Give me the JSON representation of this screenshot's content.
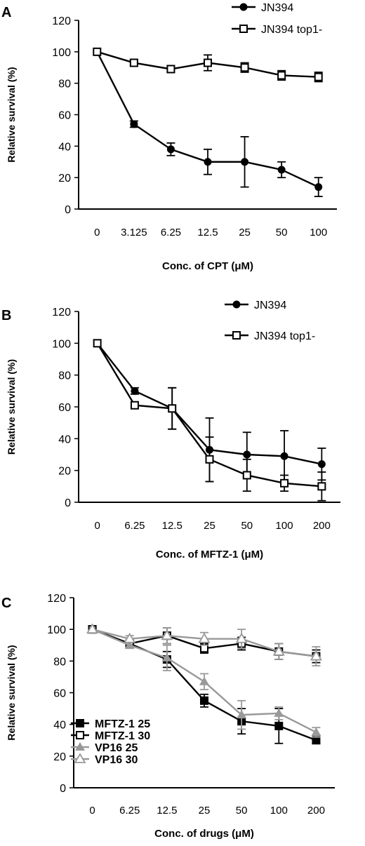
{
  "chart_data": [
    {
      "panel": "A",
      "type": "line",
      "categories": [
        "0",
        "3.125",
        "6.25",
        "12.5",
        "25",
        "50",
        "100"
      ],
      "xlabel": "Conc. of CPT (μM)",
      "ylabel": "Relative survival (%)",
      "ylim": [
        0,
        120
      ],
      "yticks": [
        0,
        20,
        40,
        60,
        80,
        100,
        120
      ],
      "grid": false,
      "legend_position": "top-right",
      "series": [
        {
          "name": "JN394",
          "marker": "filled-circle",
          "color": "#000000",
          "values": [
            100,
            54,
            38,
            30,
            30,
            25,
            14
          ],
          "errors": [
            1,
            2,
            4,
            8,
            16,
            5,
            6
          ]
        },
        {
          "name": "JN394 top1-",
          "marker": "open-square",
          "color": "#000000",
          "values": [
            100,
            93,
            89,
            93,
            90,
            85,
            84
          ],
          "errors": [
            1,
            2,
            2,
            5,
            3,
            3,
            3
          ]
        }
      ]
    },
    {
      "panel": "B",
      "type": "line",
      "categories": [
        "0",
        "6.25",
        "12.5",
        "25",
        "50",
        "100",
        "200"
      ],
      "xlabel": "Conc. of MFTZ-1 (μM)",
      "ylabel": "Relative survival (%)",
      "ylim": [
        0,
        120
      ],
      "yticks": [
        0,
        20,
        40,
        60,
        80,
        100,
        120
      ],
      "grid": false,
      "legend_position": "top-right",
      "series": [
        {
          "name": "JN394",
          "marker": "filled-circle",
          "color": "#000000",
          "values": [
            100,
            70,
            59,
            33,
            30,
            29,
            24
          ],
          "errors": [
            1,
            2,
            13,
            20,
            14,
            16,
            10
          ]
        },
        {
          "name": "JN394 top1-",
          "marker": "open-square",
          "color": "#000000",
          "values": [
            100,
            61,
            59,
            27,
            17,
            12,
            10
          ],
          "errors": [
            1,
            1,
            13,
            14,
            10,
            5,
            9
          ]
        }
      ]
    },
    {
      "panel": "C",
      "type": "line",
      "categories": [
        "0",
        "6.25",
        "12.5",
        "25",
        "50",
        "100",
        "200"
      ],
      "xlabel": "Conc. of drugs (μM)",
      "ylabel": "Relative survival (%)",
      "ylim": [
        0,
        120
      ],
      "yticks": [
        0,
        20,
        40,
        60,
        80,
        100,
        120
      ],
      "grid": false,
      "legend_position": "bottom-left",
      "series": [
        {
          "name": "MFTZ-1 25",
          "marker": "filled-square",
          "color": "#000000",
          "values": [
            100,
            91,
            81,
            55,
            42,
            39,
            30
          ],
          "errors": [
            1,
            2,
            5,
            4,
            8,
            11,
            2
          ]
        },
        {
          "name": "MFTZ-1 30",
          "marker": "open-square",
          "color": "#000000",
          "values": [
            100,
            91,
            96,
            88,
            91,
            86,
            83
          ],
          "errors": [
            1,
            2,
            5,
            3,
            4,
            5,
            4
          ]
        },
        {
          "name": "VP16 25",
          "marker": "filled-triangle",
          "color": "#999999",
          "values": [
            100,
            90,
            82,
            67,
            46,
            47,
            35
          ],
          "errors": [
            1,
            2,
            8,
            5,
            9,
            4,
            3
          ]
        },
        {
          "name": "VP16 30",
          "marker": "open-triangle",
          "color": "#999999",
          "values": [
            100,
            94,
            96,
            94,
            94,
            86,
            83
          ],
          "errors": [
            1,
            2,
            5,
            4,
            6,
            5,
            6
          ]
        }
      ]
    }
  ],
  "panel_letters": [
    "A",
    "B",
    "C"
  ]
}
